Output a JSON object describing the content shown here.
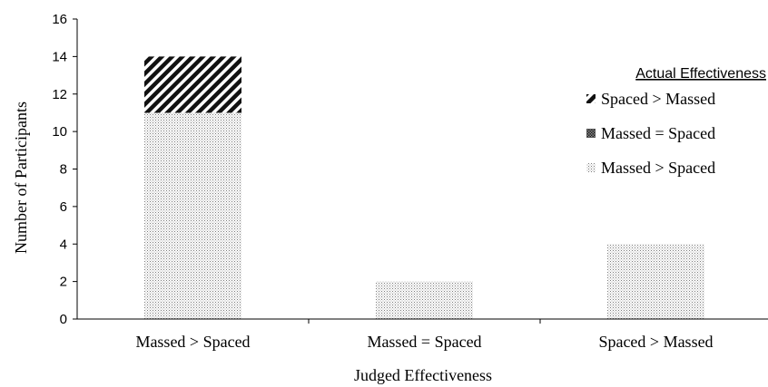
{
  "chart_data": {
    "type": "bar",
    "stacked": true,
    "categories": [
      "Massed > Spaced",
      "Massed = Spaced",
      "Spaced > Massed"
    ],
    "series": [
      {
        "name": "Massed > Spaced",
        "values": [
          11,
          2,
          4
        ],
        "pattern": "dots",
        "color": "#b8b8b8"
      },
      {
        "name": "Massed = Spaced",
        "values": [
          0,
          0,
          0
        ],
        "pattern": "checker",
        "color": "#333333"
      },
      {
        "name": "Spaced > Massed",
        "values": [
          3,
          0,
          0
        ],
        "pattern": "diagonal",
        "color": "#1a1a1a"
      }
    ],
    "legend": {
      "title": "Actual Effectiveness",
      "entries": [
        "Spaced > Massed",
        "Massed = Spaced",
        "Massed > Spaced"
      ],
      "placement": "top-right"
    },
    "xlabel": "Judged Effectiveness",
    "ylabel": "Number of Participants",
    "ylim": [
      0,
      16
    ],
    "yticks": [
      0,
      2,
      4,
      6,
      8,
      10,
      12,
      14,
      16
    ],
    "grid": false
  }
}
